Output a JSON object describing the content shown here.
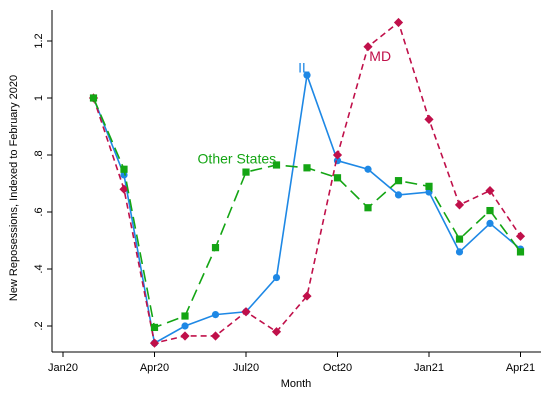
{
  "chart_data": {
    "type": "line",
    "xlabel": "Month",
    "ylabel": "New Reposessions, Indexed to February 2020",
    "x_tick_labels": [
      "Jan20",
      "Apr20",
      "Jul20",
      "Oct20",
      "Jan21",
      "Apr21"
    ],
    "x_tick_months": [
      0,
      3,
      6,
      9,
      12,
      15
    ],
    "y_ticks": [
      0.2,
      0.4,
      0.6,
      0.8,
      1,
      1.2
    ],
    "y_tick_labels": [
      ".2",
      ".4",
      ".6",
      ".8",
      "1",
      "1.2"
    ],
    "xlim": [
      "2019-12-15",
      "2021-04-15"
    ],
    "ylim": [
      0.12,
      1.29
    ],
    "grid": false,
    "x": [
      "2020-02",
      "2020-03",
      "2020-04",
      "2020-05",
      "2020-06",
      "2020-07",
      "2020-08",
      "2020-09",
      "2020-10",
      "2020-11",
      "2020-12",
      "2021-01",
      "2021-02",
      "2021-03",
      "2021-04"
    ],
    "series": [
      {
        "name": "IL",
        "color": "#1e88e5",
        "dash": "solid",
        "marker": "circle",
        "label_month": 7.9,
        "label_value": 1.09,
        "values": [
          1.0,
          0.73,
          0.14,
          0.2,
          0.24,
          0.25,
          0.37,
          1.08,
          0.78,
          0.75,
          0.66,
          0.67,
          0.46,
          0.56,
          0.47
        ]
      },
      {
        "name": "MD",
        "color": "#c0104a",
        "dash": "short",
        "marker": "diamond",
        "label_month": 10.4,
        "label_value": 1.13,
        "values": [
          1.0,
          0.68,
          0.14,
          0.165,
          0.165,
          0.25,
          0.18,
          0.305,
          0.8,
          1.18,
          1.265,
          0.925,
          0.625,
          0.675,
          0.515
        ]
      },
      {
        "name": "Other States",
        "color": "#14a514",
        "dash": "long",
        "marker": "square",
        "label_month": 5.7,
        "label_value": 0.77,
        "values": [
          1.0,
          0.75,
          0.195,
          0.235,
          0.475,
          0.74,
          0.765,
          0.755,
          0.72,
          0.615,
          0.71,
          0.69,
          0.505,
          0.605,
          0.46
        ]
      }
    ]
  }
}
